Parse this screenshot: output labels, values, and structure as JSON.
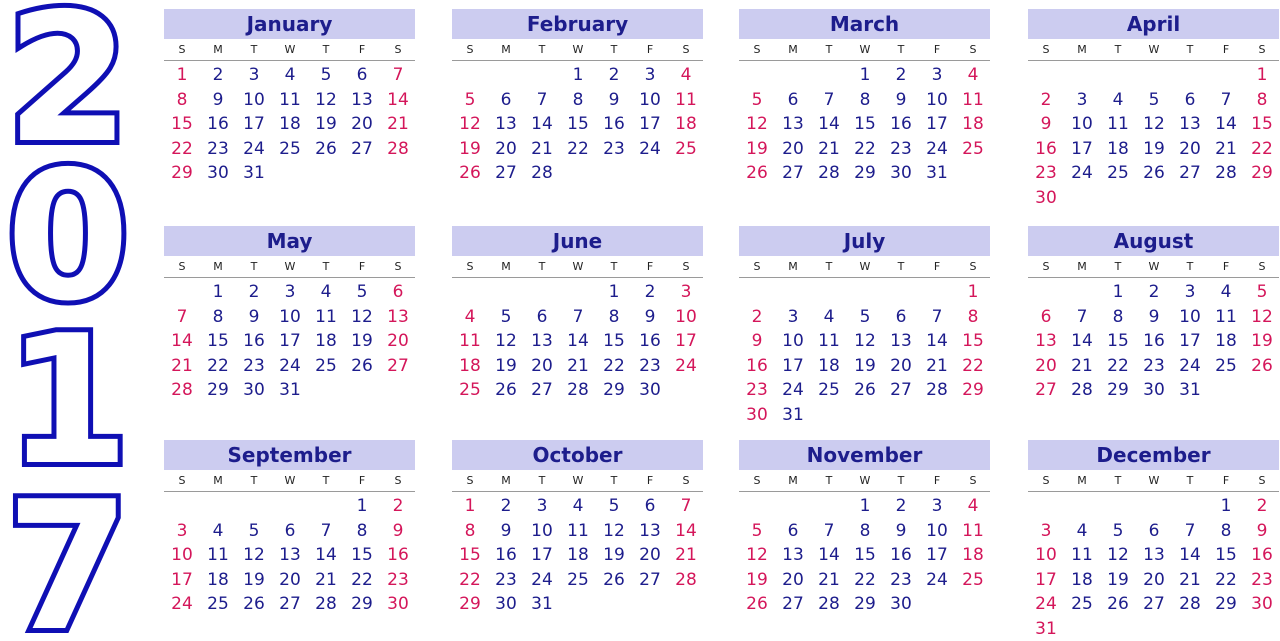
{
  "year": "2017",
  "colors": {
    "header_bg": "#ccccf0",
    "header_text": "#1d1d8c",
    "weekday_text": "#1d1d8c",
    "weekend_text": "#d4165a",
    "year_outline": "#0f0fb4"
  },
  "weekdays": [
    "S",
    "M",
    "T",
    "W",
    "T",
    "F",
    "S"
  ],
  "months": [
    {
      "name": "January",
      "start_weekday": 0,
      "days": 31
    },
    {
      "name": "February",
      "start_weekday": 3,
      "days": 28
    },
    {
      "name": "March",
      "start_weekday": 3,
      "days": 31
    },
    {
      "name": "April",
      "start_weekday": 6,
      "days": 30
    },
    {
      "name": "May",
      "start_weekday": 1,
      "days": 31
    },
    {
      "name": "June",
      "start_weekday": 4,
      "days": 30
    },
    {
      "name": "July",
      "start_weekday": 6,
      "days": 31
    },
    {
      "name": "August",
      "start_weekday": 2,
      "days": 31
    },
    {
      "name": "September",
      "start_weekday": 5,
      "days": 30
    },
    {
      "name": "October",
      "start_weekday": 0,
      "days": 31
    },
    {
      "name": "November",
      "start_weekday": 3,
      "days": 30
    },
    {
      "name": "December",
      "start_weekday": 5,
      "days": 31
    }
  ]
}
